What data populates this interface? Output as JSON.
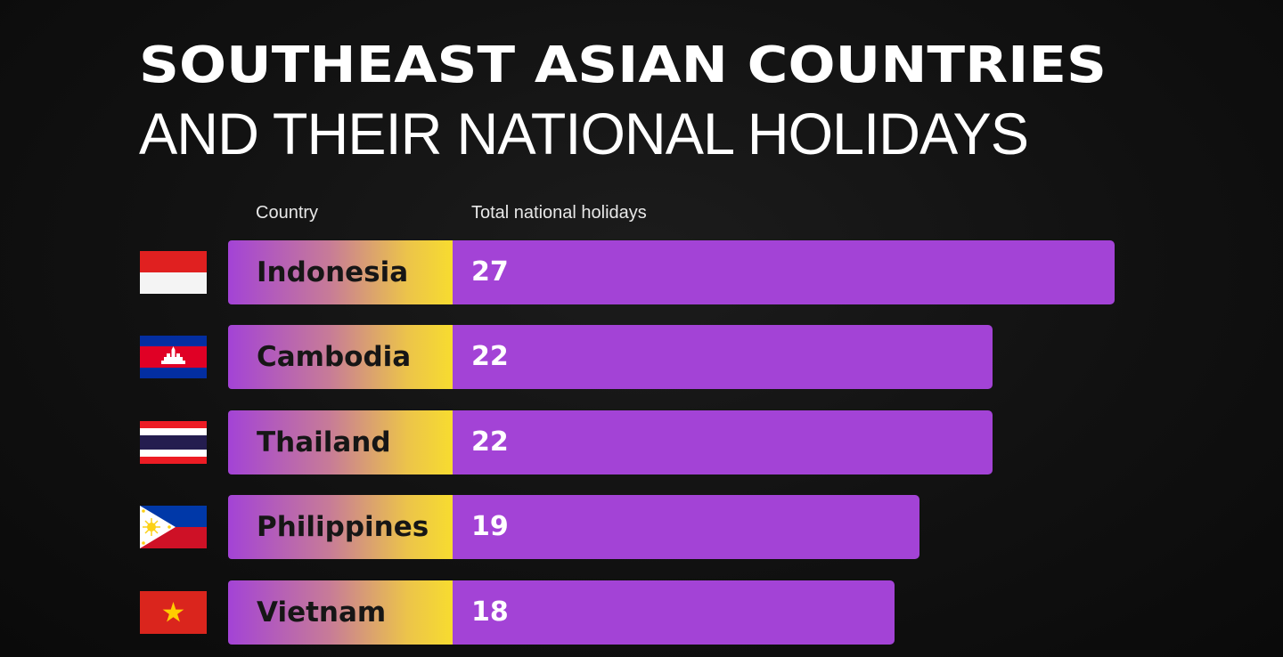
{
  "title": {
    "line1": "SOUTHEAST ASIAN COUNTRIES",
    "line2": "AND THEIR NATIONAL HOLIDAYS"
  },
  "headers": {
    "country": "Country",
    "value": "Total national holidays"
  },
  "colors": {
    "bar": "#a343d6",
    "label_gradient_end": "#f7dc2f",
    "background": "#111111"
  },
  "chart_data": {
    "type": "bar",
    "orientation": "horizontal",
    "title": "SOUTHEAST ASIAN COUNTRIES AND THEIR NATIONAL HOLIDAYS",
    "xlabel": "Total national holidays",
    "ylabel": "Country",
    "categories": [
      "Indonesia",
      "Cambodia",
      "Thailand",
      "Philippines",
      "Vietnam"
    ],
    "values": [
      27,
      22,
      22,
      19,
      18
    ],
    "flags": [
      "indonesia-flag-icon",
      "cambodia-flag-icon",
      "thailand-flag-icon",
      "philippines-flag-icon",
      "vietnam-flag-icon"
    ],
    "grid": false,
    "legend": "none"
  }
}
